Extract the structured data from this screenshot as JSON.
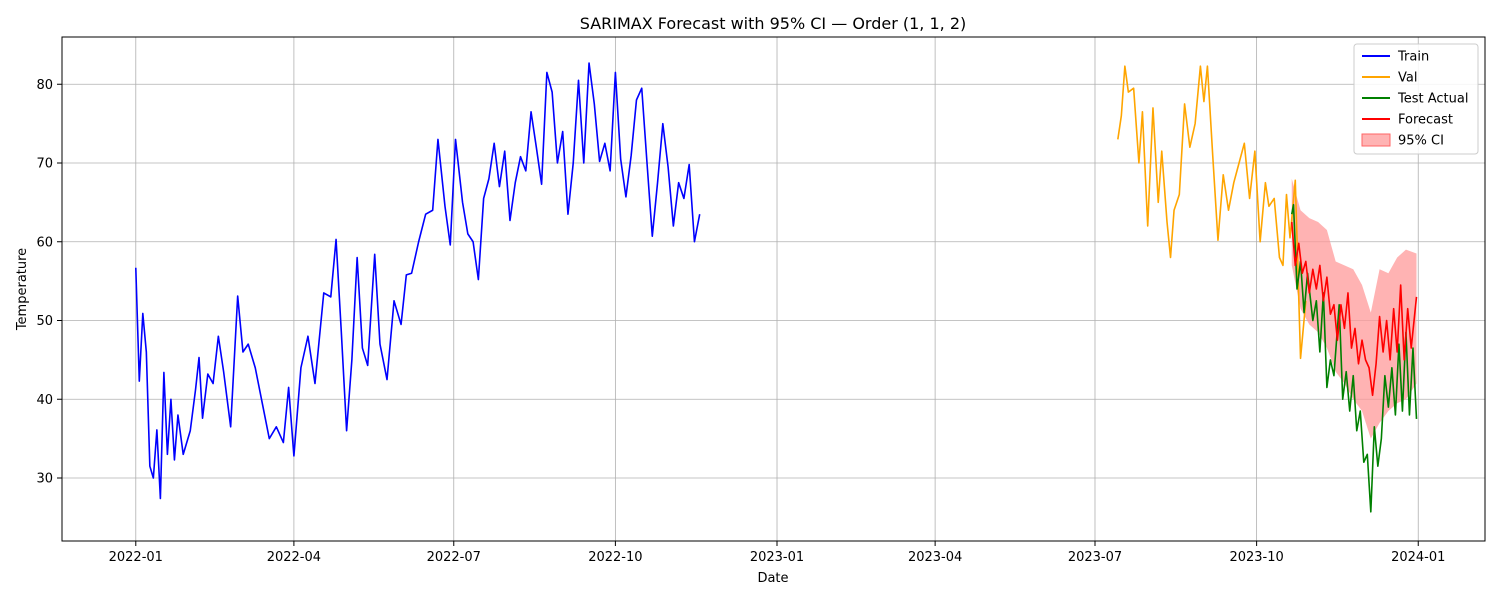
{
  "chart_data": {
    "type": "line",
    "title": "SARIMAX Forecast with 95% CI — Order (1, 1, 2)",
    "xlabel": "Date",
    "ylabel": "Temperature",
    "xlim": [
      "2021-11-20",
      "2024-02-08"
    ],
    "ylim": [
      22,
      86
    ],
    "x_ticks": [
      "2022-01",
      "2022-04",
      "2022-07",
      "2022-10",
      "2023-01",
      "2023-04",
      "2023-07",
      "2023-10",
      "2024-01"
    ],
    "x_tick_dates": [
      "2022-01-01",
      "2022-04-01",
      "2022-07-01",
      "2022-10-01",
      "2023-01-01",
      "2023-04-01",
      "2023-07-01",
      "2023-10-01",
      "2024-01-01"
    ],
    "y_ticks": [
      30,
      40,
      50,
      60,
      70,
      80
    ],
    "grid": true,
    "legend_position": "top-right",
    "series": [
      {
        "name": "Train",
        "color": "#0000ff",
        "points": [
          [
            "2022-01-01",
            56.7
          ],
          [
            "2022-01-03",
            42.3
          ],
          [
            "2022-01-05",
            50.9
          ],
          [
            "2022-01-07",
            46.0
          ],
          [
            "2022-01-09",
            31.5
          ],
          [
            "2022-01-11",
            30.0
          ],
          [
            "2022-01-13",
            36.1
          ],
          [
            "2022-01-15",
            27.4
          ],
          [
            "2022-01-17",
            43.4
          ],
          [
            "2022-01-19",
            33.0
          ],
          [
            "2022-01-21",
            40.0
          ],
          [
            "2022-01-23",
            32.3
          ],
          [
            "2022-01-25",
            38.0
          ],
          [
            "2022-01-28",
            33.0
          ],
          [
            "2022-02-01",
            36.0
          ],
          [
            "2022-02-04",
            41.2
          ],
          [
            "2022-02-06",
            45.3
          ],
          [
            "2022-02-08",
            37.6
          ],
          [
            "2022-02-11",
            43.2
          ],
          [
            "2022-02-14",
            42.0
          ],
          [
            "2022-02-17",
            48.0
          ],
          [
            "2022-02-20",
            43.5
          ],
          [
            "2022-02-24",
            36.5
          ],
          [
            "2022-02-28",
            53.1
          ],
          [
            "2022-03-03",
            46.0
          ],
          [
            "2022-03-06",
            47.0
          ],
          [
            "2022-03-10",
            44.0
          ],
          [
            "2022-03-14",
            39.5
          ],
          [
            "2022-03-18",
            35.0
          ],
          [
            "2022-03-22",
            36.5
          ],
          [
            "2022-03-26",
            34.5
          ],
          [
            "2022-03-29",
            41.5
          ],
          [
            "2022-04-01",
            32.8
          ],
          [
            "2022-04-05",
            44.0
          ],
          [
            "2022-04-09",
            48.0
          ],
          [
            "2022-04-13",
            42.0
          ],
          [
            "2022-04-18",
            53.5
          ],
          [
            "2022-04-22",
            53.0
          ],
          [
            "2022-04-25",
            60.3
          ],
          [
            "2022-04-28",
            48.5
          ],
          [
            "2022-05-01",
            36.0
          ],
          [
            "2022-05-04",
            45.0
          ],
          [
            "2022-05-07",
            58.0
          ],
          [
            "2022-05-10",
            46.5
          ],
          [
            "2022-05-13",
            44.3
          ],
          [
            "2022-05-17",
            58.4
          ],
          [
            "2022-05-20",
            47.0
          ],
          [
            "2022-05-24",
            42.5
          ],
          [
            "2022-05-28",
            52.5
          ],
          [
            "2022-06-01",
            49.5
          ],
          [
            "2022-06-04",
            55.8
          ],
          [
            "2022-06-07",
            56.0
          ],
          [
            "2022-06-11",
            60.0
          ],
          [
            "2022-06-15",
            63.5
          ],
          [
            "2022-06-19",
            64.0
          ],
          [
            "2022-06-22",
            73.0
          ],
          [
            "2022-06-26",
            64.5
          ],
          [
            "2022-06-29",
            59.6
          ],
          [
            "2022-07-02",
            73.0
          ],
          [
            "2022-07-06",
            65.0
          ],
          [
            "2022-07-09",
            61.0
          ],
          [
            "2022-07-12",
            60.0
          ],
          [
            "2022-07-15",
            55.2
          ],
          [
            "2022-07-18",
            65.5
          ],
          [
            "2022-07-21",
            68.0
          ],
          [
            "2022-07-24",
            72.5
          ],
          [
            "2022-07-27",
            67.0
          ],
          [
            "2022-07-30",
            71.5
          ],
          [
            "2022-08-02",
            62.7
          ],
          [
            "2022-08-05",
            67.5
          ],
          [
            "2022-08-08",
            70.8
          ],
          [
            "2022-08-11",
            69.0
          ],
          [
            "2022-08-14",
            76.5
          ],
          [
            "2022-08-17",
            72.0
          ],
          [
            "2022-08-20",
            67.3
          ],
          [
            "2022-08-23",
            81.5
          ],
          [
            "2022-08-26",
            79.0
          ],
          [
            "2022-08-29",
            70.0
          ],
          [
            "2022-09-01",
            74.0
          ],
          [
            "2022-09-04",
            63.5
          ],
          [
            "2022-09-07",
            70.0
          ],
          [
            "2022-09-10",
            80.5
          ],
          [
            "2022-09-13",
            70.0
          ],
          [
            "2022-09-16",
            82.7
          ],
          [
            "2022-09-19",
            77.5
          ],
          [
            "2022-09-22",
            70.2
          ],
          [
            "2022-09-25",
            72.5
          ],
          [
            "2022-09-28",
            69.0
          ],
          [
            "2022-10-01",
            81.5
          ],
          [
            "2022-10-04",
            70.5
          ],
          [
            "2022-10-07",
            65.7
          ],
          [
            "2022-10-10",
            71.0
          ],
          [
            "2022-10-13",
            78.0
          ],
          [
            "2022-10-16",
            79.5
          ],
          [
            "2022-10-19",
            70.0
          ],
          [
            "2022-10-22",
            60.7
          ],
          [
            "2022-10-25",
            67.5
          ],
          [
            "2022-10-28",
            75.0
          ],
          [
            "2022-10-31",
            69.5
          ],
          [
            "2022-11-03",
            62.0
          ],
          [
            "2022-11-06",
            67.5
          ],
          [
            "2022-11-09",
            65.5
          ],
          [
            "2022-11-12",
            69.8
          ],
          [
            "2022-11-15",
            60.0
          ],
          [
            "2022-11-18",
            63.5
          ]
        ]
      },
      {
        "name": "Val",
        "color": "#ffa500",
        "points": [
          [
            "2023-07-14",
            73.0
          ],
          [
            "2023-07-16",
            76.0
          ],
          [
            "2023-07-18",
            82.3
          ],
          [
            "2023-07-20",
            79.0
          ],
          [
            "2023-07-23",
            79.5
          ],
          [
            "2023-07-26",
            70.0
          ],
          [
            "2023-07-28",
            76.5
          ],
          [
            "2023-07-31",
            62.0
          ],
          [
            "2023-08-03",
            77.0
          ],
          [
            "2023-08-06",
            65.0
          ],
          [
            "2023-08-08",
            71.5
          ],
          [
            "2023-08-11",
            62.5
          ],
          [
            "2023-08-13",
            58.0
          ],
          [
            "2023-08-15",
            64.0
          ],
          [
            "2023-08-18",
            66.0
          ],
          [
            "2023-08-21",
            77.5
          ],
          [
            "2023-08-24",
            72.0
          ],
          [
            "2023-08-27",
            75.0
          ],
          [
            "2023-08-30",
            82.3
          ],
          [
            "2023-09-01",
            77.8
          ],
          [
            "2023-09-03",
            82.3
          ],
          [
            "2023-09-06",
            71.0
          ],
          [
            "2023-09-09",
            60.2
          ],
          [
            "2023-09-12",
            68.5
          ],
          [
            "2023-09-15",
            64.0
          ],
          [
            "2023-09-18",
            67.5
          ],
          [
            "2023-09-21",
            70.0
          ],
          [
            "2023-09-24",
            72.5
          ],
          [
            "2023-09-27",
            65.5
          ],
          [
            "2023-09-30",
            71.5
          ],
          [
            "2023-10-03",
            60.0
          ],
          [
            "2023-10-06",
            67.5
          ],
          [
            "2023-10-08",
            64.5
          ],
          [
            "2023-10-11",
            65.5
          ],
          [
            "2023-10-14",
            58.0
          ],
          [
            "2023-10-16",
            57.0
          ],
          [
            "2023-10-18",
            66.0
          ],
          [
            "2023-10-20",
            60.5
          ],
          [
            "2023-10-23",
            67.8
          ],
          [
            "2023-10-26",
            45.2
          ],
          [
            "2023-10-29",
            52.5
          ]
        ]
      },
      {
        "name": "Test Actual",
        "color": "#008000",
        "points": [
          [
            "2023-10-21",
            63.5
          ],
          [
            "2023-10-22",
            64.7
          ],
          [
            "2023-10-24",
            54.0
          ],
          [
            "2023-10-26",
            57.5
          ],
          [
            "2023-10-28",
            51.0
          ],
          [
            "2023-10-30",
            56.0
          ],
          [
            "2023-11-02",
            50.0
          ],
          [
            "2023-11-04",
            52.5
          ],
          [
            "2023-11-06",
            46.0
          ],
          [
            "2023-11-08",
            53.5
          ],
          [
            "2023-11-10",
            41.5
          ],
          [
            "2023-11-12",
            45.0
          ],
          [
            "2023-11-14",
            43.0
          ],
          [
            "2023-11-17",
            52.0
          ],
          [
            "2023-11-19",
            40.0
          ],
          [
            "2023-11-21",
            43.5
          ],
          [
            "2023-11-23",
            38.5
          ],
          [
            "2023-11-25",
            43.0
          ],
          [
            "2023-11-27",
            36.0
          ],
          [
            "2023-11-29",
            38.5
          ],
          [
            "2023-12-01",
            32.0
          ],
          [
            "2023-12-03",
            33.0
          ],
          [
            "2023-12-05",
            25.7
          ],
          [
            "2023-12-07",
            36.5
          ],
          [
            "2023-12-09",
            31.5
          ],
          [
            "2023-12-11",
            35.0
          ],
          [
            "2023-12-13",
            43.0
          ],
          [
            "2023-12-15",
            39.0
          ],
          [
            "2023-12-17",
            44.0
          ],
          [
            "2023-12-19",
            38.0
          ],
          [
            "2023-12-21",
            47.0
          ],
          [
            "2023-12-23",
            38.5
          ],
          [
            "2023-12-25",
            48.5
          ],
          [
            "2023-12-27",
            38.0
          ],
          [
            "2023-12-29",
            46.5
          ],
          [
            "2023-12-31",
            37.5
          ]
        ]
      },
      {
        "name": "Forecast",
        "color": "#ff0000",
        "points": [
          [
            "2023-10-21",
            62.5
          ],
          [
            "2023-10-23",
            57.0
          ],
          [
            "2023-10-25",
            59.8
          ],
          [
            "2023-10-27",
            56.0
          ],
          [
            "2023-10-29",
            57.5
          ],
          [
            "2023-10-31",
            53.5
          ],
          [
            "2023-11-02",
            56.5
          ],
          [
            "2023-11-04",
            54.0
          ],
          [
            "2023-11-06",
            57.0
          ],
          [
            "2023-11-08",
            52.5
          ],
          [
            "2023-11-10",
            55.5
          ],
          [
            "2023-11-12",
            50.8
          ],
          [
            "2023-11-14",
            52.0
          ],
          [
            "2023-11-16",
            47.5
          ],
          [
            "2023-11-18",
            52.0
          ],
          [
            "2023-11-20",
            49.0
          ],
          [
            "2023-11-22",
            53.5
          ],
          [
            "2023-11-24",
            46.5
          ],
          [
            "2023-11-26",
            49.0
          ],
          [
            "2023-11-28",
            44.5
          ],
          [
            "2023-11-30",
            47.5
          ],
          [
            "2023-12-02",
            45.0
          ],
          [
            "2023-12-04",
            44.0
          ],
          [
            "2023-12-06",
            40.5
          ],
          [
            "2023-12-08",
            44.5
          ],
          [
            "2023-12-10",
            50.5
          ],
          [
            "2023-12-12",
            46.0
          ],
          [
            "2023-12-14",
            50.0
          ],
          [
            "2023-12-16",
            45.0
          ],
          [
            "2023-12-18",
            51.5
          ],
          [
            "2023-12-20",
            46.0
          ],
          [
            "2023-12-22",
            54.5
          ],
          [
            "2023-12-24",
            45.0
          ],
          [
            "2023-12-26",
            51.5
          ],
          [
            "2023-12-28",
            46.5
          ],
          [
            "2023-12-31",
            53.0
          ]
        ]
      }
    ],
    "confidence_interval": {
      "name": "95% CI",
      "color": "#ff9999",
      "dates": [
        "2023-10-21",
        "2023-10-26",
        "2023-10-31",
        "2023-11-05",
        "2023-11-10",
        "2023-11-15",
        "2023-11-20",
        "2023-11-25",
        "2023-11-30",
        "2023-12-05",
        "2023-12-10",
        "2023-12-15",
        "2023-12-20",
        "2023-12-25",
        "2023-12-31"
      ],
      "lower": [
        57.0,
        51.5,
        49.5,
        48.5,
        46.5,
        43.5,
        42.0,
        40.0,
        38.5,
        35.0,
        37.0,
        38.5,
        39.5,
        40.0,
        42.0
      ],
      "upper": [
        68.0,
        64.0,
        63.0,
        62.5,
        61.5,
        57.5,
        57.0,
        56.5,
        54.5,
        51.0,
        56.5,
        56.0,
        58.0,
        59.0,
        58.5
      ]
    }
  }
}
